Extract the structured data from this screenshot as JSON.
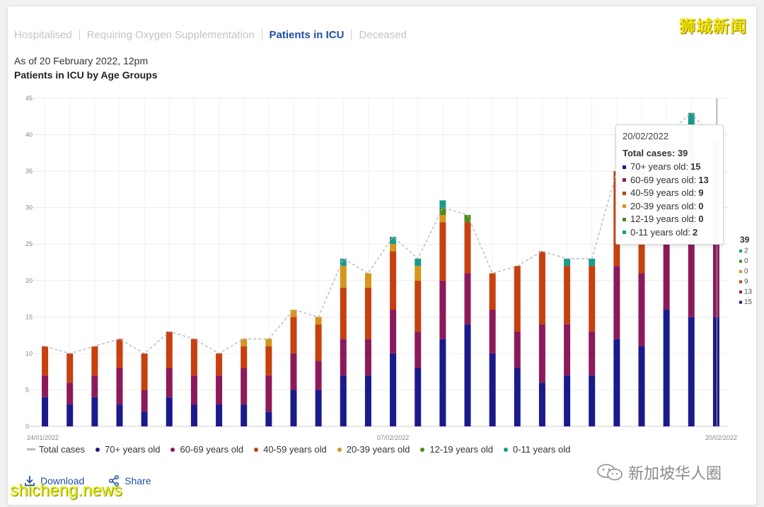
{
  "tabs": [
    {
      "label": "Hospitalised",
      "active": false
    },
    {
      "label": "Requiring Oxygen Supplementation",
      "active": false
    },
    {
      "label": "Patients in ICU",
      "active": true
    },
    {
      "label": "Deceased",
      "active": false
    }
  ],
  "as_of": "As of 20 February 2022, 12pm",
  "chart_title": "Patients in ICU by Age Groups",
  "legend": [
    {
      "label": "Total cases",
      "kind": "line",
      "color": "#bbbbbb"
    },
    {
      "label": "70+ years old",
      "kind": "dot",
      "color": "#1a1a8c"
    },
    {
      "label": "60-69 years old",
      "kind": "dot",
      "color": "#8c1a5a"
    },
    {
      "label": "40-59 years old",
      "kind": "dot",
      "color": "#c7400f"
    },
    {
      "label": "20-39 years old",
      "kind": "dot",
      "color": "#d4961c"
    },
    {
      "label": "12-19 years old",
      "kind": "dot",
      "color": "#4a8a1c"
    },
    {
      "label": "0-11 years old",
      "kind": "dot",
      "color": "#1a9a8a"
    }
  ],
  "actions": {
    "download": "Download",
    "share": "Share"
  },
  "tooltip": {
    "date": "20/02/2022",
    "total_label": "Total cases:",
    "total_value": "39",
    "rows": [
      {
        "label": "70+ years old:",
        "value": "15",
        "color": "#1a1a8c"
      },
      {
        "label": "60-69 years old:",
        "value": "13",
        "color": "#8c1a5a"
      },
      {
        "label": "40-59 years old:",
        "value": "9",
        "color": "#c7400f"
      },
      {
        "label": "20-39 years old:",
        "value": "0",
        "color": "#d4961c"
      },
      {
        "label": "12-19 years old:",
        "value": "0",
        "color": "#4a8a1c"
      },
      {
        "label": "0-11 years old:",
        "value": "2",
        "color": "#1a9a8a"
      }
    ]
  },
  "end_labels": {
    "total": "39",
    "values": [
      "2",
      "0",
      "0",
      "9",
      "13",
      "15"
    ]
  },
  "watermarks": {
    "top_right": "狮城新闻",
    "bottom_left": "shicheng.news",
    "bottom_right": "新加坡华人圈"
  },
  "chart_data": {
    "type": "bar",
    "stacked": true,
    "title": "Patients in ICU by Age Groups",
    "xlabel": "",
    "ylabel": "",
    "ylim": [
      0,
      45
    ],
    "yticks": [
      0,
      5,
      10,
      15,
      20,
      25,
      30,
      35,
      40,
      45
    ],
    "x_tick_labels": [
      "24/01/2022",
      "07/02/2022",
      "20/02/2022"
    ],
    "x_tick_positions": [
      0,
      14,
      27
    ],
    "grid": true,
    "categories": [
      "24/01/2022",
      "25/01/2022",
      "26/01/2022",
      "27/01/2022",
      "28/01/2022",
      "29/01/2022",
      "30/01/2022",
      "31/01/2022",
      "01/02/2022",
      "02/02/2022",
      "03/02/2022",
      "04/02/2022",
      "05/02/2022",
      "06/02/2022",
      "07/02/2022",
      "08/02/2022",
      "09/02/2022",
      "10/02/2022",
      "11/02/2022",
      "12/02/2022",
      "13/02/2022",
      "14/02/2022",
      "15/02/2022",
      "16/02/2022",
      "17/02/2022",
      "18/02/2022",
      "19/02/2022",
      "20/02/2022"
    ],
    "series": [
      {
        "name": "70+ years old",
        "color": "#1a1a8c",
        "values": [
          4,
          3,
          4,
          3,
          2,
          4,
          3,
          3,
          3,
          2,
          5,
          5,
          7,
          7,
          10,
          8,
          12,
          14,
          10,
          8,
          6,
          7,
          7,
          12,
          11,
          16,
          15,
          15
        ]
      },
      {
        "name": "60-69 years old",
        "color": "#8c1a5a",
        "values": [
          3,
          3,
          3,
          5,
          3,
          4,
          4,
          4,
          5,
          5,
          5,
          4,
          5,
          5,
          6,
          5,
          8,
          7,
          6,
          5,
          8,
          7,
          6,
          10,
          10,
          10,
          15,
          13
        ]
      },
      {
        "name": "40-59 years old",
        "color": "#c7400f",
        "values": [
          4,
          4,
          4,
          4,
          5,
          5,
          5,
          3,
          3,
          4,
          5,
          5,
          7,
          7,
          8,
          7,
          8,
          7,
          5,
          9,
          10,
          8,
          9,
          13,
          14,
          14,
          11,
          9
        ]
      },
      {
        "name": "20-39 years old",
        "color": "#d4961c",
        "values": [
          0,
          0,
          0,
          0,
          0,
          0,
          0,
          0,
          1,
          1,
          1,
          1,
          3,
          2,
          1,
          2,
          1,
          0,
          0,
          0,
          0,
          0,
          0,
          0,
          0,
          0,
          0,
          0
        ]
      },
      {
        "name": "12-19 years old",
        "color": "#4a8a1c",
        "values": [
          0,
          0,
          0,
          0,
          0,
          0,
          0,
          0,
          0,
          0,
          0,
          0,
          0,
          0,
          0,
          0,
          1,
          1,
          0,
          0,
          0,
          0,
          0,
          0,
          0,
          0,
          0,
          0
        ]
      },
      {
        "name": "0-11 years old",
        "color": "#1a9a8a",
        "values": [
          0,
          0,
          0,
          0,
          0,
          0,
          0,
          0,
          0,
          0,
          0,
          0,
          1,
          0,
          1,
          1,
          1,
          0,
          0,
          0,
          0,
          1,
          1,
          0,
          0,
          0,
          2,
          2
        ]
      },
      {
        "name": "Total cases",
        "kind": "line",
        "color": "#bbbbbb",
        "values": [
          11,
          10,
          11,
          12,
          10,
          13,
          12,
          10,
          12,
          12,
          16,
          15,
          23,
          21,
          26,
          23,
          30,
          29,
          21,
          22,
          24,
          23,
          23,
          35,
          35,
          40,
          43,
          39
        ]
      }
    ],
    "legend_position": "bottom"
  }
}
